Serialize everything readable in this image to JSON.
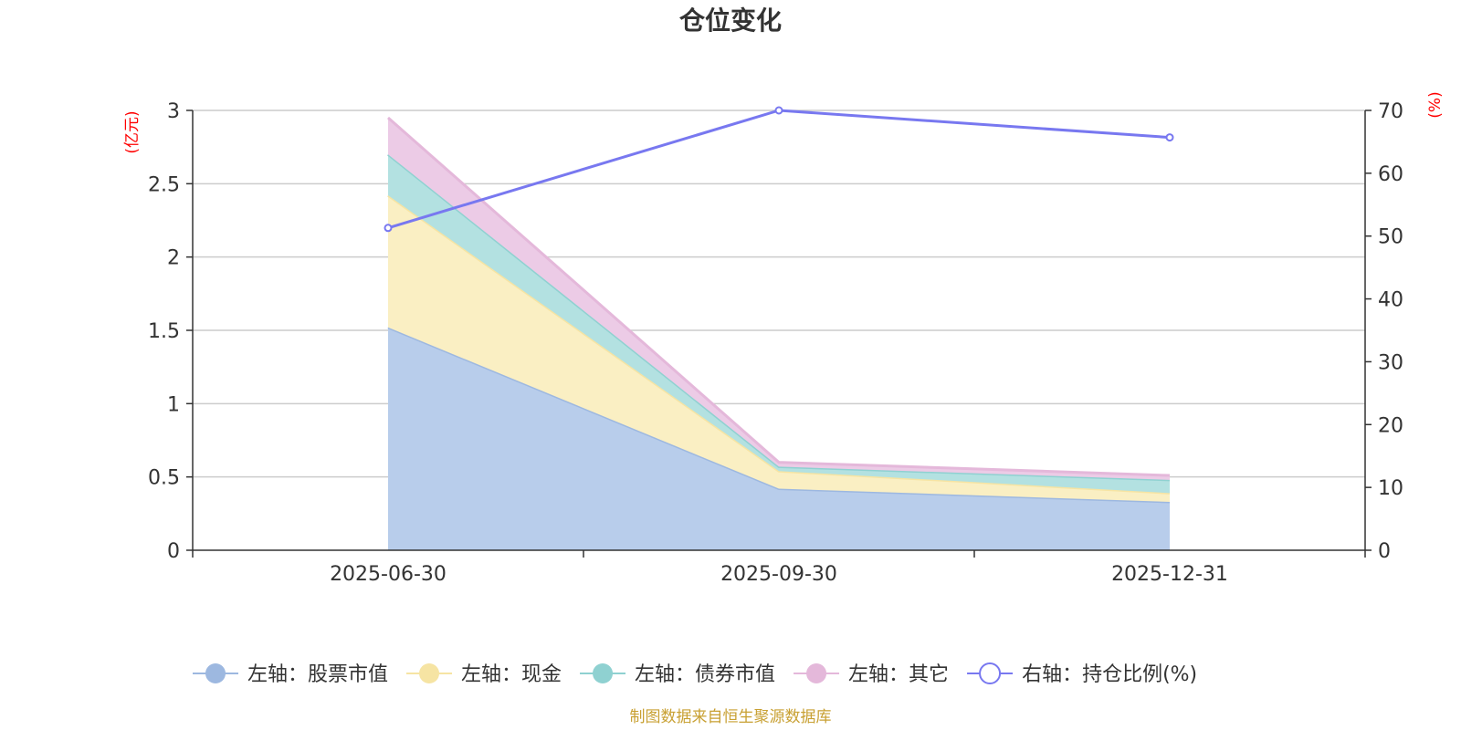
{
  "chart_data": {
    "type": "area",
    "title": "仓位变化",
    "categories": [
      "2025-06-30",
      "2025-09-30",
      "2025-12-31"
    ],
    "left_axis": {
      "unit": "(亿元)",
      "ylim": [
        0,
        3
      ],
      "ticks": [
        "0",
        "0.5",
        "1",
        "1.5",
        "2",
        "2.5",
        "3"
      ]
    },
    "right_axis": {
      "unit": "(%)",
      "ylim": [
        0,
        70
      ],
      "ticks": [
        "0",
        "10",
        "20",
        "30",
        "40",
        "50",
        "60",
        "70"
      ]
    },
    "series": [
      {
        "name": "左轴：股票市值",
        "axis": "left",
        "kind": "stacked-area",
        "values": [
          1.52,
          0.42,
          0.33
        ],
        "color": "#9db8e0",
        "fill": "#b8cdeb"
      },
      {
        "name": "左轴：现金",
        "axis": "left",
        "kind": "stacked-area",
        "values": [
          0.9,
          0.12,
          0.06
        ],
        "color": "#f6e4a3",
        "fill": "#faefc3"
      },
      {
        "name": "左轴：债券市值",
        "axis": "left",
        "kind": "stacked-area",
        "values": [
          0.28,
          0.03,
          0.09
        ],
        "color": "#8fd1d1",
        "fill": "#b3e1e1"
      },
      {
        "name": "左轴：其它",
        "axis": "left",
        "kind": "stacked-area",
        "values": [
          0.25,
          0.03,
          0.03
        ],
        "color": "#e4b8da",
        "fill": "#eccbe6"
      },
      {
        "name": "右轴：持仓比例(%)",
        "axis": "right",
        "kind": "line",
        "values": [
          51.3,
          70.0,
          65.7
        ],
        "color": "#7878f0"
      }
    ],
    "legend_position": "bottom",
    "grid": true,
    "source": "制图数据来自恒生聚源数据库"
  }
}
